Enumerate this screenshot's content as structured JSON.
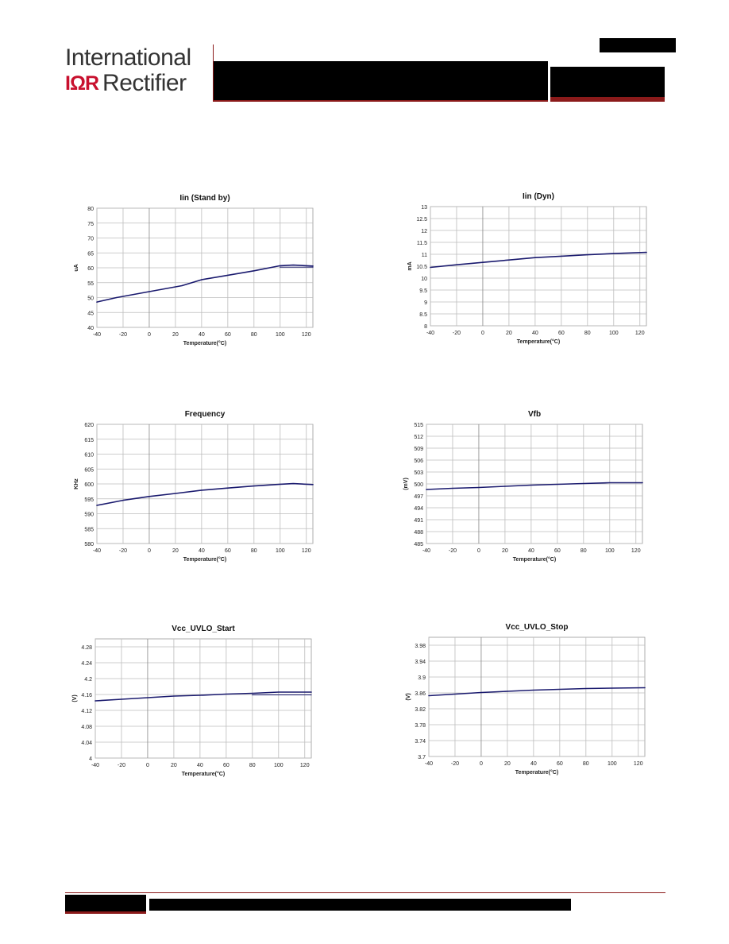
{
  "header": {
    "logo_line1": "International",
    "logo_mark": "IΩR",
    "logo_word": "Rectifier"
  },
  "colors": {
    "line": "#1a1a6e",
    "grid": "#bdbdbd",
    "grid_zero": "#888888",
    "brand_red": "#c8102e"
  },
  "chart_data": [
    {
      "type": "line",
      "title": "Iin (Stand by)",
      "xlabel": "Temperature(°C)",
      "ylabel": "uA",
      "xlim": [
        -40,
        125
      ],
      "ylim": [
        40,
        80
      ],
      "xticks": [
        -40,
        -20,
        0,
        20,
        40,
        60,
        80,
        100,
        120
      ],
      "xtick_labels": [
        "-40",
        "-20",
        "0",
        "20",
        "40",
        "60",
        "80",
        "100",
        "120"
      ],
      "yticks": [
        40,
        45,
        50,
        55,
        60,
        65,
        70,
        75,
        80
      ],
      "ytick_labels": [
        "40",
        "45",
        "50",
        "55",
        "60",
        "65",
        "70",
        "75",
        "80"
      ],
      "grid": true,
      "series": [
        {
          "x": [
            -40,
            -25,
            0,
            25,
            40,
            60,
            80,
            100,
            110,
            125
          ],
          "y": [
            48.5,
            50.0,
            52.0,
            54.0,
            56.0,
            57.5,
            59.0,
            60.7,
            60.9,
            60.6
          ]
        },
        {
          "x": [
            100,
            125
          ],
          "y": [
            60.2,
            60.2
          ]
        }
      ]
    },
    {
      "type": "line",
      "title": "Iin (Dyn)",
      "xlabel": "Temperature(°C)",
      "ylabel": "mA",
      "xlim": [
        -40,
        125
      ],
      "ylim": [
        8,
        13
      ],
      "xticks": [
        -40,
        -20,
        0,
        20,
        40,
        60,
        80,
        100,
        120
      ],
      "xtick_labels": [
        "-40",
        "-20",
        "0",
        "20",
        "40",
        "60",
        "80",
        "100",
        "120"
      ],
      "yticks": [
        8,
        8.5,
        9,
        9.5,
        10,
        10.5,
        11,
        11.5,
        12,
        12.5,
        13
      ],
      "ytick_labels": [
        "8",
        "8.5",
        "9",
        "9.5",
        "10",
        "10.5",
        "11",
        "11.5",
        "12",
        "12.5",
        "13"
      ],
      "grid": true,
      "series": [
        {
          "x": [
            -40,
            -20,
            0,
            20,
            40,
            60,
            80,
            100,
            125
          ],
          "y": [
            10.45,
            10.56,
            10.66,
            10.76,
            10.86,
            10.92,
            10.98,
            11.03,
            11.08
          ]
        }
      ]
    },
    {
      "type": "line",
      "title": "Frequency",
      "xlabel": "Temperature(°C)",
      "ylabel": "KHz",
      "xlim": [
        -40,
        125
      ],
      "ylim": [
        580,
        620
      ],
      "xticks": [
        -40,
        -20,
        0,
        20,
        40,
        60,
        80,
        100,
        120
      ],
      "xtick_labels": [
        "-40",
        "-20",
        "0",
        "20",
        "40",
        "60",
        "80",
        "100",
        "120"
      ],
      "yticks": [
        580,
        585,
        590,
        595,
        600,
        605,
        610,
        615,
        620
      ],
      "ytick_labels": [
        "580",
        "585",
        "590",
        "595",
        "600",
        "605",
        "610",
        "615",
        "620"
      ],
      "grid": true,
      "series": [
        {
          "x": [
            -40,
            -20,
            0,
            20,
            40,
            60,
            80,
            100,
            110,
            125
          ],
          "y": [
            592.8,
            594.5,
            595.8,
            596.8,
            597.9,
            598.6,
            599.3,
            599.9,
            600.1,
            599.8
          ]
        }
      ]
    },
    {
      "type": "line",
      "title": "Vfb",
      "xlabel": "Temperature(°C)",
      "ylabel": "(mV)",
      "xlim": [
        -40,
        125
      ],
      "ylim": [
        485,
        515
      ],
      "xticks": [
        -40,
        -20,
        0,
        20,
        40,
        60,
        80,
        100,
        120
      ],
      "xtick_labels": [
        "-40",
        "-20",
        "0",
        "20",
        "40",
        "60",
        "80",
        "100",
        "120"
      ],
      "yticks": [
        485,
        488,
        491,
        494,
        497,
        500,
        503,
        506,
        509,
        512,
        515
      ],
      "ytick_labels": [
        "485",
        "488",
        "491",
        "494",
        "497",
        "500",
        "503",
        "506",
        "509",
        "512",
        "515"
      ],
      "grid": true,
      "series": [
        {
          "x": [
            -40,
            -20,
            0,
            20,
            40,
            60,
            80,
            100,
            125
          ],
          "y": [
            498.6,
            498.9,
            499.1,
            499.4,
            499.7,
            499.9,
            500.1,
            500.3,
            500.3
          ]
        }
      ]
    },
    {
      "type": "line",
      "title": "Vcc_UVLO_Start",
      "xlabel": "Temperature(°C)",
      "ylabel": "(V)",
      "xlim": [
        -40,
        125
      ],
      "ylim": [
        4,
        4.3
      ],
      "xticks": [
        -40,
        -20,
        0,
        20,
        40,
        60,
        80,
        100,
        120
      ],
      "xtick_labels": [
        "-40",
        "-20",
        "0",
        "20",
        "40",
        "60",
        "80",
        "100",
        "120"
      ],
      "yticks": [
        4,
        4.04,
        4.08,
        4.12,
        4.16,
        4.2,
        4.24,
        4.28
      ],
      "ytick_labels": [
        "4",
        "4.04",
        "4.08",
        "4.12",
        "4.16",
        "4.2",
        "4.24",
        "4.28"
      ],
      "grid": true,
      "series": [
        {
          "x": [
            -40,
            -20,
            0,
            20,
            40,
            60,
            80,
            100,
            125
          ],
          "y": [
            4.144,
            4.148,
            4.152,
            4.156,
            4.158,
            4.161,
            4.163,
            4.166,
            4.166
          ]
        },
        {
          "x": [
            80,
            125
          ],
          "y": [
            4.159,
            4.159
          ]
        }
      ]
    },
    {
      "type": "line",
      "title": "Vcc_UVLO_Stop",
      "xlabel": "Temperature(°C)",
      "ylabel": "(V)",
      "xlim": [
        -40,
        125
      ],
      "ylim": [
        3.7,
        4
      ],
      "xticks": [
        -40,
        -20,
        0,
        20,
        40,
        60,
        80,
        100,
        120
      ],
      "xtick_labels": [
        "-40",
        "-20",
        "0",
        "20",
        "40",
        "60",
        "80",
        "100",
        "120"
      ],
      "yticks": [
        3.7,
        3.74,
        3.78,
        3.82,
        3.86,
        3.9,
        3.94,
        3.98
      ],
      "ytick_labels": [
        "3.7",
        "3.74",
        "3.78",
        "3.82",
        "3.86",
        "3.9",
        "3.94",
        "3.98"
      ],
      "grid": true,
      "series": [
        {
          "x": [
            -40,
            -20,
            0,
            20,
            40,
            60,
            80,
            100,
            125
          ],
          "y": [
            3.853,
            3.857,
            3.861,
            3.864,
            3.867,
            3.869,
            3.871,
            3.872,
            3.873
          ]
        }
      ]
    }
  ]
}
